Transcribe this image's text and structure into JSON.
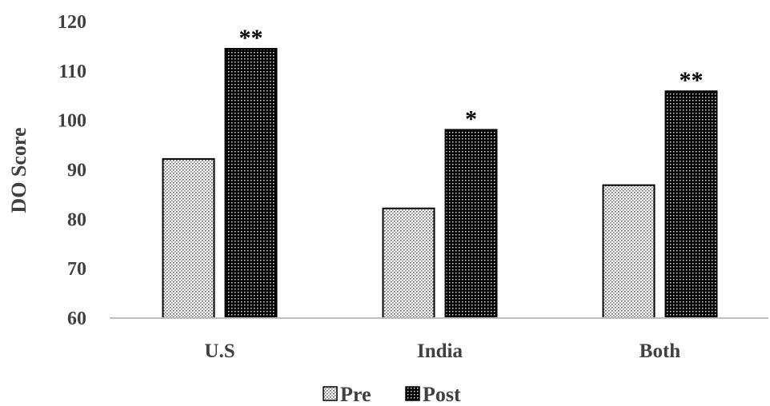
{
  "chart_data": {
    "type": "bar",
    "ylabel": "DO Score",
    "xlabel": "",
    "ylim": [
      60,
      120
    ],
    "yticks": [
      60,
      70,
      80,
      90,
      100,
      110,
      120
    ],
    "categories": [
      "U.S",
      "India",
      "Both"
    ],
    "series": [
      {
        "name": "Pre",
        "values": [
          92.2,
          82.2,
          86.9
        ],
        "pattern": "light-dotted"
      },
      {
        "name": "Post",
        "values": [
          114.5,
          98.1,
          105.9
        ],
        "pattern": "dark-dotted"
      }
    ],
    "annotations": [
      "**",
      "*",
      "**"
    ],
    "grid": false,
    "legend_position": "bottom"
  }
}
